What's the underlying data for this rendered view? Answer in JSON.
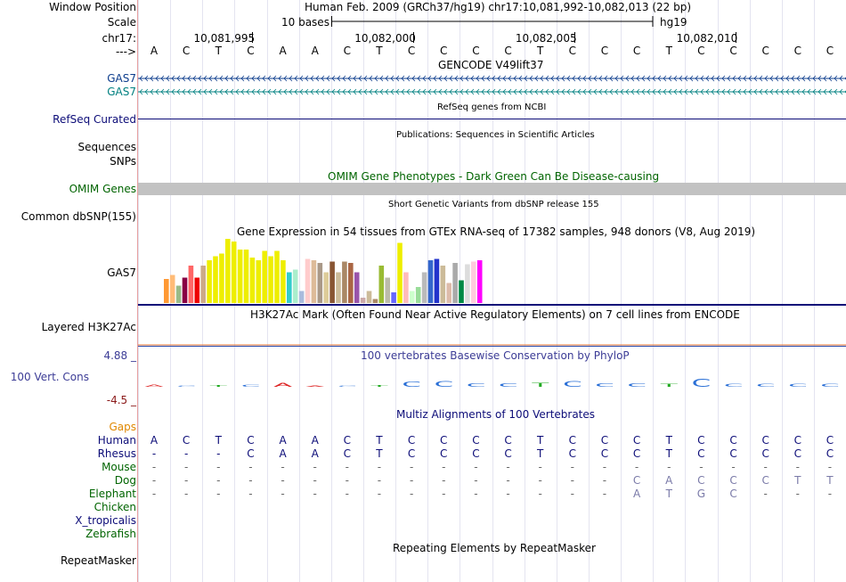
{
  "header": {
    "window_position_label": "Window Position",
    "assembly_title": "Human Feb. 2009 (GRCh37/hg19)   chr17:10,081,992-10,082,013 (22 bp)",
    "scale_label": "Scale",
    "scale_text": "10 bases",
    "scale_db": "hg19",
    "chrom_label": "chr17:",
    "strand_label": "--->",
    "coords": [
      "10,081,995",
      "10,082,000",
      "10,082,005",
      "10,082,010"
    ],
    "sequence": [
      "A",
      "C",
      "T",
      "C",
      "A",
      "A",
      "C",
      "T",
      "C",
      "C",
      "C",
      "C",
      "T",
      "C",
      "C",
      "C",
      "T",
      "C",
      "C",
      "C",
      "C",
      "C"
    ]
  },
  "tracks": {
    "gencode": {
      "title": "GENCODE V49lift37",
      "rows": [
        "GAS7",
        "GAS7"
      ],
      "colors": [
        "#0c3c8c",
        "#008080"
      ]
    },
    "refseq": {
      "title": "RefSeq genes from NCBI",
      "label": "RefSeq Curated",
      "color": "#0c0c78"
    },
    "publications": {
      "title": "Publications: Sequences in Scientific Articles",
      "label": "Sequences"
    },
    "snps": {
      "label": "SNPs"
    },
    "omim": {
      "title": "OMIM Gene Phenotypes - Dark Green Can Be Disease-causing",
      "label": "OMIM Genes",
      "color": "#006400"
    },
    "dbsnp": {
      "title": "Short Genetic Variants from dbSNP release 155",
      "label": "Common dbSNP(155)"
    },
    "gtex": {
      "title": "Gene Expression in 54 tissues from GTEx RNA-seq of 17382 samples, 948 donors (V8, Aug 2019)",
      "label": "GAS7",
      "bars": [
        {
          "v": 0.36,
          "c": "#ff9933"
        },
        {
          "v": 0.42,
          "c": "#ffbb77"
        },
        {
          "v": 0.26,
          "c": "#99bb88"
        },
        {
          "v": 0.38,
          "c": "#880044"
        },
        {
          "v": 0.56,
          "c": "#ff6666"
        },
        {
          "v": 0.38,
          "c": "#ee0000"
        },
        {
          "v": 0.56,
          "c": "#ccaa88"
        },
        {
          "v": 0.64,
          "c": "#eeee00"
        },
        {
          "v": 0.7,
          "c": "#eeee00"
        },
        {
          "v": 0.74,
          "c": "#eeee00"
        },
        {
          "v": 0.96,
          "c": "#eeee00"
        },
        {
          "v": 0.92,
          "c": "#eeee00"
        },
        {
          "v": 0.8,
          "c": "#eeee00"
        },
        {
          "v": 0.8,
          "c": "#eeee00"
        },
        {
          "v": 0.68,
          "c": "#eeee00"
        },
        {
          "v": 0.64,
          "c": "#eeee00"
        },
        {
          "v": 0.78,
          "c": "#eeee00"
        },
        {
          "v": 0.7,
          "c": "#eeee00"
        },
        {
          "v": 0.78,
          "c": "#eeee00"
        },
        {
          "v": 0.64,
          "c": "#eeee00"
        },
        {
          "v": 0.46,
          "c": "#33cccc"
        },
        {
          "v": 0.5,
          "c": "#aaeecc"
        },
        {
          "v": 0.18,
          "c": "#aabbdd"
        },
        {
          "v": 0.66,
          "c": "#ffcccc"
        },
        {
          "v": 0.64,
          "c": "#ddbb99"
        },
        {
          "v": 0.6,
          "c": "#aa9988"
        },
        {
          "v": 0.46,
          "c": "#ddcc99"
        },
        {
          "v": 0.62,
          "c": "#885533"
        },
        {
          "v": 0.46,
          "c": "#ccbb99"
        },
        {
          "v": 0.62,
          "c": "#aa8866"
        },
        {
          "v": 0.6,
          "c": "#aa6644"
        },
        {
          "v": 0.46,
          "c": "#9955aa"
        },
        {
          "v": 0.08,
          "c": "#ccaaaa"
        },
        {
          "v": 0.18,
          "c": "#ccbb99"
        },
        {
          "v": 0.06,
          "c": "#aa8866"
        },
        {
          "v": 0.56,
          "c": "#99bb33"
        },
        {
          "v": 0.38,
          "c": "#bbbbaa"
        },
        {
          "v": 0.16,
          "c": "#6666ff"
        },
        {
          "v": 0.9,
          "c": "#eeee00"
        },
        {
          "v": 0.46,
          "c": "#ffbbbb"
        },
        {
          "v": 0.18,
          "c": "#ccffcc"
        },
        {
          "v": 0.24,
          "c": "#99dd99"
        },
        {
          "v": 0.46,
          "c": "#bbbbbb"
        },
        {
          "v": 0.64,
          "c": "#3366cc"
        },
        {
          "v": 0.66,
          "c": "#2233cc"
        },
        {
          "v": 0.56,
          "c": "#ccbb99"
        },
        {
          "v": 0.3,
          "c": "#ddbbaa"
        },
        {
          "v": 0.6,
          "c": "#aaaaaa"
        },
        {
          "v": 0.34,
          "c": "#008844"
        },
        {
          "v": 0.58,
          "c": "#dddddd"
        },
        {
          "v": 0.62,
          "c": "#ffccdd"
        },
        {
          "v": 0.64,
          "c": "#ff00ff"
        }
      ]
    },
    "h3k27ac": {
      "title": "H3K27Ac Mark (Often Found Near Active Regulatory Elements) on 7 cell lines from ENCODE",
      "label": "Layered H3K27Ac"
    },
    "phylop": {
      "title": "100 vertebrates Basewise Conservation by PhyloP",
      "label": "100 Vert. Cons",
      "ymax": "4.88 _",
      "ymin": "-4.5 _"
    },
    "multiz": {
      "title": "Multiz Alignments of 100 Vertebrates",
      "gaps_label": "Gaps",
      "species": [
        {
          "name": "Human",
          "color": "#0c0c78",
          "seq": [
            "A",
            "C",
            "T",
            "C",
            "A",
            "A",
            "C",
            "T",
            "C",
            "C",
            "C",
            "C",
            "T",
            "C",
            "C",
            "C",
            "T",
            "C",
            "C",
            "C",
            "C",
            "C"
          ]
        },
        {
          "name": "Rhesus",
          "color": "#0c0c78",
          "seq": [
            "-",
            "-",
            "-",
            "C",
            "A",
            "A",
            "C",
            "T",
            "C",
            "C",
            "C",
            "C",
            "T",
            "C",
            "C",
            "C",
            "T",
            "C",
            "C",
            "C",
            "C",
            "C"
          ]
        },
        {
          "name": "Mouse",
          "color": "#006400",
          "seq": [
            "-",
            "-",
            "-",
            "-",
            "-",
            "-",
            "-",
            "-",
            "-",
            "-",
            "-",
            "-",
            "-",
            "-",
            "-",
            "-",
            "-",
            "-",
            "-",
            "-",
            "-",
            "-"
          ]
        },
        {
          "name": "Dog",
          "color": "#006400",
          "seq": [
            "-",
            "-",
            "-",
            "-",
            "-",
            "-",
            "-",
            "-",
            "-",
            "-",
            "-",
            "-",
            "-",
            "-",
            "-",
            "C",
            "A",
            "C",
            "C",
            "C",
            "T",
            "T"
          ]
        },
        {
          "name": "Elephant",
          "color": "#006400",
          "seq": [
            "-",
            "-",
            "-",
            "-",
            "-",
            "-",
            "-",
            "-",
            "-",
            "-",
            "-",
            "-",
            "-",
            "-",
            "-",
            "A",
            "T",
            "G",
            "C",
            "-",
            "-",
            "-"
          ]
        },
        {
          "name": "Chicken",
          "color": "#006400",
          "seq": []
        },
        {
          "name": "X_tropicalis",
          "color": "#0c0c78",
          "seq": []
        },
        {
          "name": "Zebrafish",
          "color": "#006400",
          "seq": []
        }
      ]
    },
    "repeatmasker": {
      "title": "Repeating Elements by RepeatMasker",
      "label": "RepeatMasker"
    }
  }
}
